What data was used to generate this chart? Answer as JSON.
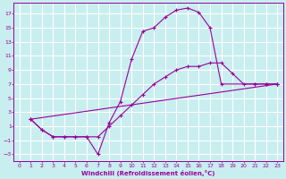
{
  "xlabel": "Windchill (Refroidissement éolien,°C)",
  "bg_color": "#c8eef0",
  "grid_color": "#ffffff",
  "line_color": "#990099",
  "xlim": [
    -0.5,
    23.5
  ],
  "ylim": [
    -4,
    18.5
  ],
  "xticks": [
    0,
    1,
    2,
    3,
    4,
    5,
    6,
    7,
    8,
    9,
    10,
    11,
    12,
    13,
    14,
    15,
    16,
    17,
    18,
    19,
    20,
    21,
    22,
    23
  ],
  "yticks": [
    -3,
    -1,
    1,
    3,
    5,
    7,
    9,
    11,
    13,
    15,
    17
  ],
  "line1_x": [
    1,
    2,
    3,
    4,
    5,
    6,
    7,
    8,
    9,
    10,
    11,
    12,
    13,
    14,
    15,
    16,
    17,
    18,
    21,
    22,
    23
  ],
  "line1_y": [
    2,
    0.5,
    -0.5,
    -0.5,
    -0.5,
    -0.5,
    -3,
    1.5,
    4.5,
    10.5,
    14.5,
    15.0,
    16.5,
    17.5,
    17.8,
    17.2,
    15.0,
    7.0,
    7.0,
    7.0,
    7.0
  ],
  "line2_x": [
    1,
    2,
    3,
    4,
    5,
    6,
    7,
    8,
    9,
    10,
    11,
    12,
    13,
    14,
    15,
    16,
    17,
    18,
    19,
    20,
    21,
    22,
    23
  ],
  "line2_y": [
    2,
    0.5,
    -0.5,
    -0.5,
    -0.5,
    -0.5,
    -0.5,
    1.0,
    2.5,
    4.0,
    5.5,
    7.0,
    8.0,
    9.0,
    9.5,
    9.5,
    10.0,
    10.0,
    8.5,
    7.0,
    7.0,
    7.0,
    7.0
  ],
  "line3_x": [
    1,
    23
  ],
  "line3_y": [
    2,
    7
  ]
}
